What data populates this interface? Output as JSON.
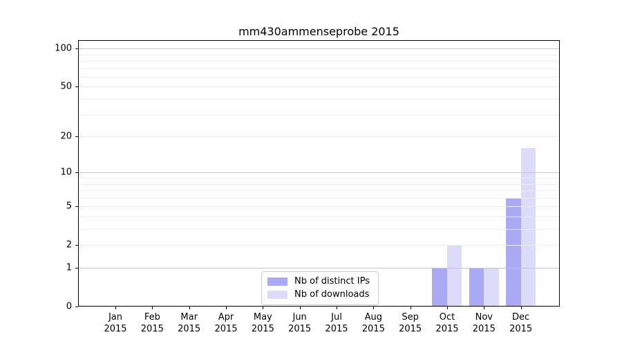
{
  "title": "mm430ammenseprobe 2015",
  "legend": {
    "items": [
      "Nb of distinct IPs",
      "Nb of downloads"
    ]
  },
  "colors": {
    "distinct_ips": "#a9a9f6",
    "downloads": "#dcdcfa",
    "grid_minor": "#ececec",
    "grid_major": "#c6c6c6",
    "spine": "#000000",
    "background": "#ffffff"
  },
  "chart_data": {
    "type": "bar",
    "title": "mm430ammenseprobe 2015",
    "x_categories": [
      {
        "month": "Jan",
        "year": "2015"
      },
      {
        "month": "Feb",
        "year": "2015"
      },
      {
        "month": "Mar",
        "year": "2015"
      },
      {
        "month": "Apr",
        "year": "2015"
      },
      {
        "month": "May",
        "year": "2015"
      },
      {
        "month": "Jun",
        "year": "2015"
      },
      {
        "month": "Jul",
        "year": "2015"
      },
      {
        "month": "Aug",
        "year": "2015"
      },
      {
        "month": "Sep",
        "year": "2015"
      },
      {
        "month": "Oct",
        "year": "2015"
      },
      {
        "month": "Nov",
        "year": "2015"
      },
      {
        "month": "Dec",
        "year": "2015"
      }
    ],
    "series": [
      {
        "name": "Nb of distinct IPs",
        "color": "#a9a9f6",
        "values": [
          0,
          0,
          0,
          0,
          0,
          0,
          0,
          0,
          0,
          1,
          1,
          6
        ]
      },
      {
        "name": "Nb of downloads",
        "color": "#dcdcfa",
        "values": [
          0,
          0,
          0,
          0,
          0,
          0,
          0,
          0,
          0,
          2,
          1,
          16
        ]
      }
    ],
    "y_scale": "log10(1+x)",
    "y_tick_values": [
      100,
      50,
      20,
      10,
      5,
      2,
      1,
      0
    ],
    "y_tick_labels": [
      "100",
      "50",
      "20",
      "10",
      "5",
      "2",
      "1",
      "0"
    ],
    "major_gridline_values": [
      1,
      10,
      100
    ],
    "minor_gridline_values": [
      2,
      3,
      4,
      5,
      6,
      7,
      8,
      9,
      20,
      30,
      40,
      50,
      60,
      70,
      80,
      90
    ],
    "ylim": [
      0,
      120
    ],
    "grid": "on",
    "legend_position": "lower center"
  }
}
